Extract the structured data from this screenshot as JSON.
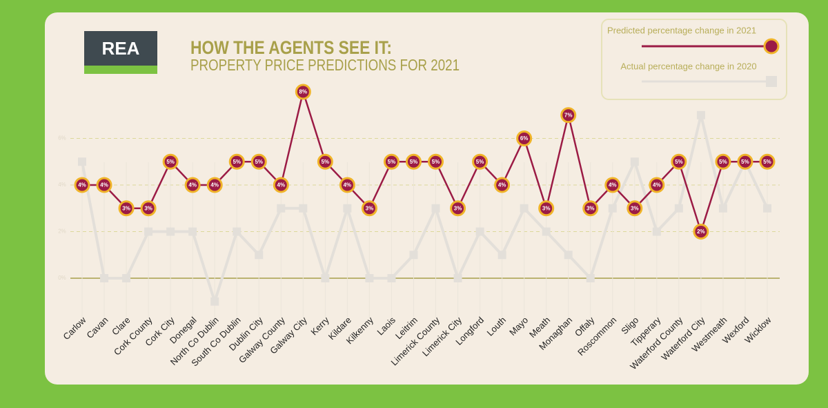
{
  "logo": "REA",
  "chart_data": {
    "type": "line",
    "title": "HOW THE AGENTS SEE IT:",
    "subtitle": "PROPERTY PRICE PREDICTIONS FOR 2021",
    "categories": [
      "Carlow",
      "Cavan",
      "Clare",
      "Cork County",
      "Cork City",
      "Donegal",
      "North Co Dublin",
      "South Co Dublin",
      "Dublin City",
      "Galway County",
      "Galway City",
      "Kerry",
      "Kildare",
      "Kilkenny",
      "Laois",
      "Leitrim",
      "Limerick County",
      "Limerick City",
      "Longford",
      "Louth",
      "Mayo",
      "Meath",
      "Monaghan",
      "Offaly",
      "Roscommon",
      "Sligo",
      "Tipperary",
      "Waterford County",
      "Waterford City",
      "Westmeath",
      "Wexford",
      "Wicklow"
    ],
    "series": [
      {
        "name": "Actual percentage change in 2020",
        "color": "#e3dfd9",
        "values": [
          5,
          0,
          0,
          2,
          2,
          2,
          -1,
          2,
          1,
          3,
          3,
          0,
          3,
          0,
          0,
          1,
          3,
          0,
          2,
          1,
          3,
          2,
          1,
          0,
          3,
          5,
          2,
          3,
          7,
          3,
          5,
          3
        ]
      },
      {
        "name": "Predicted percentage change in 2021",
        "color": "#9b1b45",
        "values": [
          4,
          4,
          3,
          3,
          5,
          4,
          4,
          5,
          5,
          4,
          8,
          5,
          4,
          3,
          5,
          5,
          5,
          3,
          5,
          4,
          6,
          3,
          7,
          3,
          4,
          3,
          4,
          5,
          2,
          5,
          5,
          5
        ],
        "value_labels": [
          "4%",
          "4%",
          "3%",
          "3%",
          "5%",
          "4%",
          "4%",
          "5%",
          "5%",
          "4%",
          "8%",
          "5%",
          "4%",
          "3%",
          "5%",
          "5%",
          "5%",
          "3%",
          "5%",
          "4%",
          "6%",
          "3%",
          "7%",
          "3%",
          "4%",
          "3%",
          "4%",
          "5%",
          "2%",
          "5%",
          "5%",
          "5%"
        ]
      }
    ],
    "ylim": [
      -2,
      8
    ],
    "yticks": [
      {
        "value": 0,
        "label": "0%"
      },
      {
        "value": 2,
        "label": "2%"
      },
      {
        "value": 4,
        "label": "4%"
      },
      {
        "value": 6,
        "label": "6%"
      }
    ],
    "grid": true
  }
}
